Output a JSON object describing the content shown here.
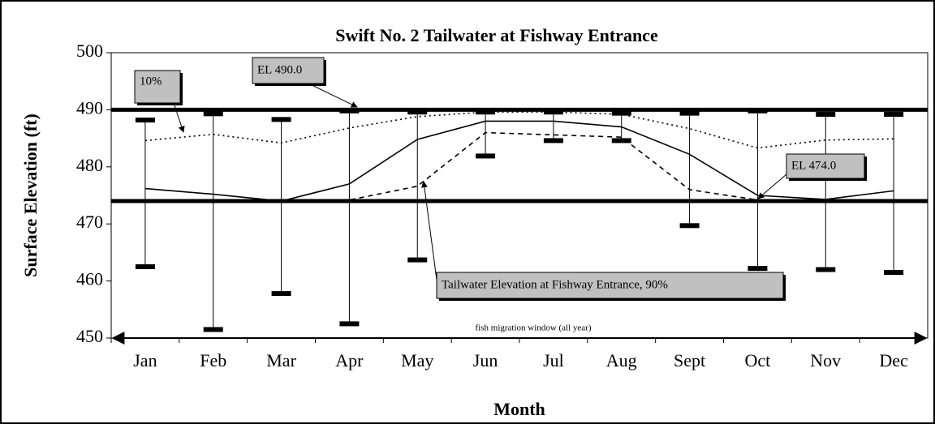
{
  "chart_data": {
    "type": "line",
    "title": "Swift No. 2 Tailwater at Fishway Entrance",
    "y_label": "Surface Elevation (ft)",
    "x_label": "Month",
    "categories": [
      "Jan",
      "Feb",
      "Mar",
      "Apr",
      "May",
      "Jun",
      "Jul",
      "Aug",
      "Sept",
      "Oct",
      "Nov",
      "Dec"
    ],
    "series": [
      {
        "color": "#000000",
        "style": "solid",
        "values": [
          476.2,
          475.2,
          474,
          477,
          484.8,
          488,
          488,
          487,
          482.2,
          475,
          474.3,
          475.8
        ]
      },
      {
        "color": "#000000",
        "style": "dotted",
        "values": [
          484.6,
          485.7,
          484.2,
          486.8,
          488.8,
          489.6,
          489.6,
          489.2,
          486.7,
          483.3,
          484.7,
          484.9
        ]
      },
      {
        "color": "#000000",
        "style": "dashed",
        "values": [
          474,
          474,
          474,
          474.2,
          476.6,
          486,
          485.6,
          485.2,
          476,
          474.2,
          474,
          474
        ]
      }
    ],
    "high": [
      488.2,
      489.3,
      488.3,
      489.8,
      489.6,
      489.6,
      489.6,
      489.4,
      489.4,
      489.8,
      489.2,
      489.2
    ],
    "low": [
      462.5,
      451.5,
      457.8,
      452.5,
      463.7,
      481.9,
      484.6,
      484.6,
      469.7,
      462.2,
      462,
      461.5
    ],
    "reference_lines": [
      490,
      474
    ],
    "annotations": [
      "EL 490.0",
      "10%",
      "EL 474.0",
      "Tailwater Elevation at Fishway Entrance, 90%",
      "fish migration window (all year)"
    ],
    "ylim": [
      450,
      500
    ],
    "yticks": [
      450,
      460,
      470,
      480,
      490,
      500
    ]
  }
}
